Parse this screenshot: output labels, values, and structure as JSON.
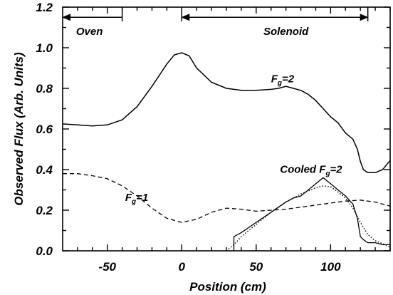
{
  "chart_data": {
    "type": "line",
    "title": "",
    "xlabel": "Position (cm)",
    "ylabel": "Observed Flux (Arb. Units)",
    "xlim": [
      -80,
      140
    ],
    "ylim": [
      0,
      1.2
    ],
    "grid": false,
    "x_ticks": [
      "-50",
      "0",
      "50",
      "100"
    ],
    "y_ticks": [
      "0.0",
      "0.2",
      "0.4",
      "0.6",
      "0.8",
      "1.0",
      "1.2"
    ],
    "x_tick_values": [
      -50,
      0,
      50,
      100
    ],
    "y_tick_values": [
      0.0,
      0.2,
      0.4,
      0.6,
      0.8,
      1.0,
      1.2
    ],
    "regions": [
      {
        "label": "Oven",
        "from": -80,
        "to": -40,
        "y": 1.15,
        "arrow": "left",
        "label_x": -62,
        "label_y": 1.08
      },
      {
        "label": "Solenoid",
        "from": 0,
        "to": 125,
        "y": 1.15,
        "arrow": "both",
        "label_x": 70,
        "label_y": 1.08
      }
    ],
    "series": [
      {
        "style": "solid",
        "label": {
          "text": "F",
          "sub": "g",
          "rest": "=2",
          "x": 60,
          "y": 0.83
        },
        "x": [
          -80,
          -70,
          -60,
          -50,
          -40,
          -30,
          -20,
          -10,
          -5,
          0,
          5,
          10,
          20,
          30,
          40,
          50,
          60,
          65,
          70,
          75,
          80,
          85,
          90,
          95,
          100,
          105,
          110,
          115,
          118,
          120,
          122,
          125,
          130,
          135,
          140
        ],
        "y": [
          0.625,
          0.62,
          0.615,
          0.62,
          0.645,
          0.71,
          0.81,
          0.92,
          0.965,
          0.975,
          0.96,
          0.9,
          0.83,
          0.8,
          0.79,
          0.79,
          0.795,
          0.8,
          0.81,
          0.8,
          0.79,
          0.77,
          0.74,
          0.7,
          0.66,
          0.63,
          0.58,
          0.55,
          0.5,
          0.44,
          0.4,
          0.385,
          0.385,
          0.4,
          0.445
        ]
      },
      {
        "style": "dashed",
        "label": {
          "text": "F",
          "sub": "g",
          "rest": "=1",
          "x": -38,
          "y": 0.245
        },
        "x": [
          -80,
          -70,
          -60,
          -50,
          -40,
          -30,
          -20,
          -10,
          0,
          10,
          20,
          30,
          40,
          50,
          60,
          70,
          80,
          90,
          100,
          110,
          120,
          130,
          140
        ],
        "y": [
          0.38,
          0.38,
          0.37,
          0.355,
          0.32,
          0.27,
          0.21,
          0.16,
          0.14,
          0.155,
          0.19,
          0.21,
          0.205,
          0.195,
          0.2,
          0.205,
          0.215,
          0.225,
          0.235,
          0.245,
          0.25,
          0.24,
          0.22
        ]
      },
      {
        "style": "solid-thin",
        "label": {
          "text": "Cooled F",
          "sub": "g",
          "rest": "=2",
          "x": 66,
          "y": 0.385
        },
        "x": [
          35,
          35,
          40,
          50,
          60,
          70,
          75,
          80,
          85,
          90,
          95,
          100,
          105,
          110,
          115,
          118,
          120,
          122,
          125,
          130,
          135,
          140
        ],
        "y": [
          0.0,
          0.07,
          0.09,
          0.14,
          0.19,
          0.24,
          0.26,
          0.27,
          0.3,
          0.33,
          0.36,
          0.33,
          0.3,
          0.27,
          0.23,
          0.16,
          0.07,
          0.055,
          0.04,
          0.04,
          0.03,
          0.03
        ]
      },
      {
        "style": "dotted",
        "x": [
          30,
          35,
          40,
          50,
          60,
          70,
          80,
          90,
          95,
          100,
          105,
          110,
          115,
          120,
          125,
          130,
          140
        ],
        "y": [
          0.0,
          0.03,
          0.07,
          0.13,
          0.19,
          0.24,
          0.28,
          0.31,
          0.32,
          0.315,
          0.29,
          0.26,
          0.21,
          0.14,
          0.08,
          0.05,
          0.02
        ]
      }
    ]
  }
}
